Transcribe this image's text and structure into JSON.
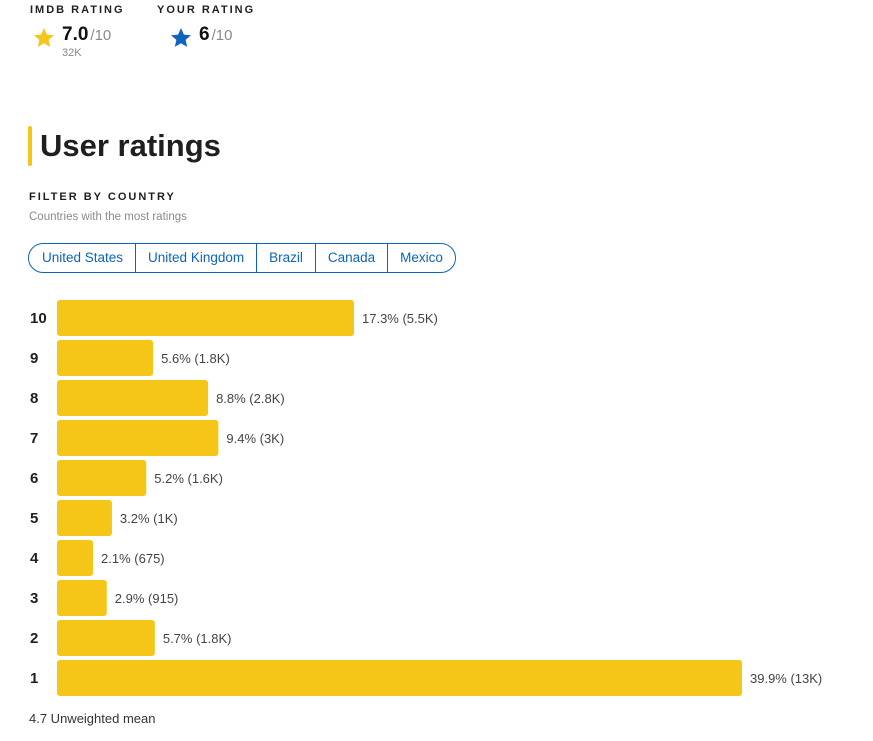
{
  "imdb_rating": {
    "label": "IMDb RATING",
    "score": "7.0",
    "out_of": "/10",
    "count": "32K",
    "star_color": "#f5c518"
  },
  "your_rating": {
    "label": "YOUR RATING",
    "score": "6",
    "out_of": "/10",
    "star_color": "#0e63be"
  },
  "section": {
    "title": "User ratings",
    "accent_color": "#f5c518"
  },
  "filter": {
    "label": "FILTER BY COUNTRY",
    "subtitle": "Countries with the most ratings",
    "countries": [
      "United States",
      "United Kingdom",
      "Brazil",
      "Canada",
      "Mexico"
    ]
  },
  "summary": {
    "mean_text": "4.7 Unweighted mean"
  },
  "chart_data": {
    "type": "bar",
    "orientation": "horizontal",
    "title": "User ratings",
    "xlabel": "",
    "ylabel": "",
    "categories": [
      "10",
      "9",
      "8",
      "7",
      "6",
      "5",
      "4",
      "3",
      "2",
      "1"
    ],
    "values": [
      17.3,
      5.6,
      8.8,
      9.4,
      5.2,
      3.2,
      2.1,
      2.9,
      5.7,
      39.9
    ],
    "counts": [
      "5.5K",
      "1.8K",
      "2.8K",
      "3K",
      "1.6K",
      "1K",
      "675",
      "915",
      "1.8K",
      "13K"
    ],
    "value_labels": [
      "17.3% (5.5K)",
      "5.6% (1.8K)",
      "8.8% (2.8K)",
      "9.4% (3K)",
      "5.2% (1.6K)",
      "3.2% (1K)",
      "2.1% (675)",
      "2.9% (915)",
      "5.7% (1.8K)",
      "39.9% (13K)"
    ],
    "unit": "%",
    "xlim": [
      0,
      39.9
    ],
    "grid": false,
    "legend": "none",
    "bar_color": "#f5c518"
  }
}
